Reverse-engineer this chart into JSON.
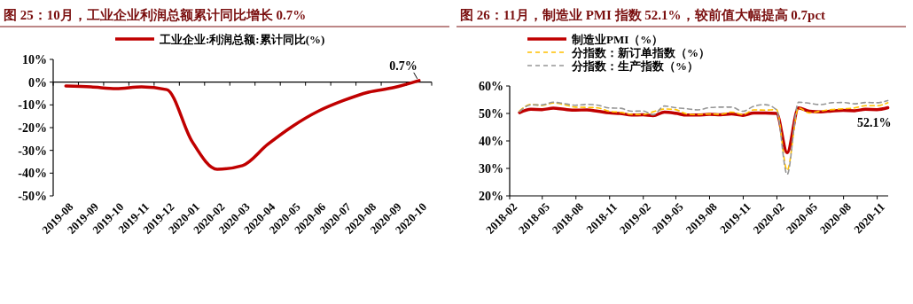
{
  "chart_data": [
    {
      "type": "line",
      "title": "图 25：10月，工业企业利润总额累计同比增长 0.7%",
      "categories": [
        "2019-08",
        "2019-09",
        "2019-10",
        "2019-11",
        "2019-12",
        "2020-01",
        "2020-02",
        "2020-03",
        "2020-04",
        "2020-05",
        "2020-06",
        "2020-07",
        "2020-08",
        "2020-09",
        "2020-10"
      ],
      "series": [
        {
          "name": "工业企业:利润总额:累计同比(%)",
          "color": "#c00000",
          "values": [
            -1.7,
            -2.1,
            -2.9,
            -2.1,
            -3.3,
            -26,
            -38.3,
            -36.7,
            -27.4,
            -19.3,
            -12.8,
            -8.1,
            -4.4,
            -2.4,
            0.7
          ]
        }
      ],
      "ylim": [
        -50,
        10
      ],
      "yticks": [
        {
          "value": -50,
          "label": "-50%"
        },
        {
          "value": -40,
          "label": "-40%"
        },
        {
          "value": -30,
          "label": "-30%"
        },
        {
          "value": -20,
          "label": "-20%"
        },
        {
          "value": -10,
          "label": "-10%"
        },
        {
          "value": 0,
          "label": "0%"
        },
        {
          "value": 10,
          "label": "10%"
        }
      ],
      "annotations": [
        {
          "text": "0.7%",
          "x": "2020-10",
          "y": 0.7
        }
      ],
      "legend": "top",
      "line_style": "solid",
      "marker": "none"
    },
    {
      "type": "line",
      "title": "图 26：11月，制造业 PMI 指数 52.1%，较前值大幅提高 0.7pct",
      "x": [
        "2018-02-28",
        "2018-03-31",
        "2018-04-30",
        "2018-05-31",
        "2018-06-30",
        "2018-07-31",
        "2018-08-31",
        "2018-09-30",
        "2018-10-31",
        "2018-11-30",
        "2018-12-31",
        "2019-01-31",
        "2019-02-28",
        "2019-03-31",
        "2019-04-30",
        "2019-05-31",
        "2019-06-30",
        "2019-07-31",
        "2019-08-31",
        "2019-09-30",
        "2019-10-31",
        "2019-11-30",
        "2019-12-31",
        "2020-01-31",
        "2020-02-29",
        "2020-03-31",
        "2020-04-30",
        "2020-05-31",
        "2020-06-30",
        "2020-07-31",
        "2020-08-31",
        "2020-09-30",
        "2020-10-31",
        "2020-11-30"
      ],
      "series": [
        {
          "name": "制造业PMI（%）",
          "color": "#c00000",
          "line_style": "solid",
          "values": [
            50.3,
            51.5,
            51.4,
            51.9,
            51.5,
            51.2,
            51.3,
            50.8,
            50.2,
            50.0,
            49.4,
            49.5,
            49.2,
            50.5,
            50.1,
            49.4,
            49.4,
            49.7,
            49.5,
            49.8,
            49.3,
            50.2,
            50.2,
            50.0,
            35.7,
            52.0,
            50.8,
            50.6,
            50.9,
            51.1,
            51.0,
            51.5,
            51.4,
            52.1
          ]
        },
        {
          "name": "分指数：新订单指数（%）",
          "color": "#ffc000",
          "line_style": "dashed",
          "values": [
            50.9,
            53.3,
            52.9,
            53.8,
            53.2,
            52.3,
            52.2,
            52.0,
            50.8,
            50.4,
            49.7,
            49.6,
            50.6,
            51.6,
            51.4,
            49.8,
            49.6,
            49.8,
            49.7,
            50.5,
            49.6,
            51.3,
            51.2,
            51.4,
            29.3,
            52.0,
            50.2,
            50.9,
            51.4,
            51.7,
            52.0,
            52.8,
            52.8,
            53.9
          ]
        },
        {
          "name": "分指数：生产指数（%）",
          "color": "#969696",
          "line_style": "dashed",
          "values": [
            50.7,
            53.1,
            53.1,
            54.1,
            53.6,
            53.0,
            53.3,
            53.0,
            52.0,
            51.9,
            50.8,
            50.9,
            49.5,
            52.7,
            52.1,
            51.7,
            51.3,
            52.1,
            52.3,
            52.3,
            50.8,
            52.6,
            53.2,
            51.3,
            27.8,
            54.1,
            53.7,
            53.2,
            53.9,
            54.0,
            53.5,
            54.0,
            53.9,
            54.7
          ]
        }
      ],
      "xlim": [
        "2018-02-01",
        "2020-12-01"
      ],
      "xticks": [
        {
          "value": "2018-02-01",
          "label": "2018-02"
        },
        {
          "value": "2018-05-01",
          "label": "2018-05"
        },
        {
          "value": "2018-08-01",
          "label": "2018-08"
        },
        {
          "value": "2018-11-01",
          "label": "2018-11"
        },
        {
          "value": "2019-02-01",
          "label": "2019-02"
        },
        {
          "value": "2019-05-01",
          "label": "2019-05"
        },
        {
          "value": "2019-08-01",
          "label": "2019-08"
        },
        {
          "value": "2019-11-01",
          "label": "2019-11"
        },
        {
          "value": "2020-02-01",
          "label": "2020-02"
        },
        {
          "value": "2020-05-01",
          "label": "2020-05"
        },
        {
          "value": "2020-08-01",
          "label": "2020-08"
        },
        {
          "value": "2020-11-01",
          "label": "2020-11"
        }
      ],
      "ylim": [
        20,
        60
      ],
      "yticks": [
        {
          "value": 20,
          "label": "20%"
        },
        {
          "value": 30,
          "label": "30%"
        },
        {
          "value": 40,
          "label": "40%"
        },
        {
          "value": 50,
          "label": "50%"
        },
        {
          "value": 60,
          "label": "60%"
        }
      ],
      "annotations": [
        {
          "text": "52.1%",
          "x": "2020-11-30",
          "y": 52.1
        }
      ],
      "legend": "top",
      "marker": "none"
    }
  ]
}
